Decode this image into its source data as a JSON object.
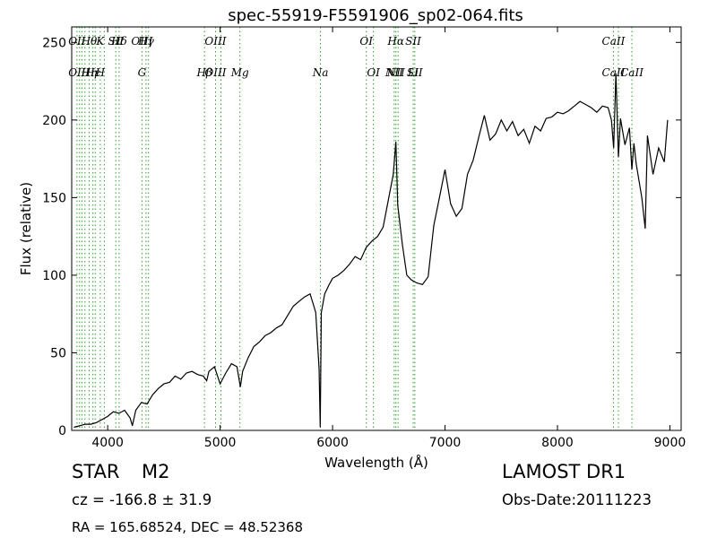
{
  "chart_data": {
    "type": "line",
    "title": "spec-55919-F5591906_sp02-064.fits",
    "xlabel": "Wavelength (Å)",
    "ylabel": "Flux (relative)",
    "xlim": [
      3680,
      9100
    ],
    "ylim": [
      0,
      260
    ],
    "xticks": [
      4000,
      5000,
      6000,
      7000,
      8000,
      9000
    ],
    "yticks": [
      0,
      50,
      100,
      150,
      200,
      250
    ],
    "grid": false,
    "line_color": "#000000",
    "line_marker_color": "#2ca02c",
    "series": [
      {
        "x": [
          3700,
          3750,
          3800,
          3850,
          3900,
          3950,
          4000,
          4050,
          4100,
          4150,
          4200,
          4220,
          4250,
          4300,
          4350,
          4400,
          4450,
          4500,
          4550,
          4600,
          4650,
          4700,
          4750,
          4800,
          4850,
          4880,
          4900,
          4950,
          5000,
          5050,
          5100,
          5150,
          5180,
          5200,
          5250,
          5300,
          5350,
          5400,
          5450,
          5500,
          5550,
          5600,
          5650,
          5700,
          5750,
          5800,
          5850,
          5880,
          5890,
          5900,
          5930,
          5970,
          6000,
          6050,
          6100,
          6150,
          6200,
          6250,
          6300,
          6350,
          6400,
          6450,
          6500,
          6540,
          6563,
          6580,
          6620,
          6660,
          6700,
          6750,
          6800,
          6850,
          6900,
          6950,
          7000,
          7050,
          7100,
          7150,
          7200,
          7250,
          7300,
          7350,
          7400,
          7450,
          7500,
          7550,
          7600,
          7650,
          7700,
          7750,
          7800,
          7850,
          7900,
          7950,
          8000,
          8050,
          8100,
          8150,
          8200,
          8250,
          8300,
          8350,
          8400,
          8450,
          8480,
          8500,
          8520,
          8542,
          8560,
          8600,
          8640,
          8662,
          8680,
          8700,
          8750,
          8780,
          8800,
          8850,
          8900,
          8950,
          8980
        ],
        "y": [
          2,
          3,
          4,
          4,
          5,
          7,
          9,
          12,
          11,
          13,
          8,
          3,
          13,
          18,
          17,
          23,
          27,
          30,
          31,
          35,
          33,
          37,
          38,
          36,
          35,
          32,
          38,
          41,
          30,
          37,
          43,
          41,
          28,
          38,
          47,
          54,
          57,
          61,
          63,
          66,
          68,
          74,
          80,
          83,
          86,
          88,
          76,
          40,
          2,
          76,
          88,
          94,
          98,
          100,
          103,
          107,
          112,
          110,
          118,
          122,
          125,
          131,
          150,
          165,
          186,
          145,
          120,
          100,
          97,
          95,
          94,
          99,
          132,
          150,
          168,
          146,
          138,
          143,
          165,
          174,
          189,
          203,
          187,
          191,
          200,
          193,
          199,
          190,
          194,
          185,
          196,
          193,
          201,
          202,
          205,
          204,
          206,
          209,
          212,
          210,
          208,
          205,
          209,
          208,
          200,
          182,
          230,
          176,
          201,
          184,
          195,
          168,
          185,
          172,
          150,
          130,
          190,
          165,
          182,
          173,
          200
        ]
      }
    ],
    "lines": [
      {
        "x": 3727,
        "top": "OII",
        "bottom": "OII"
      },
      {
        "x": 3750,
        "top": "",
        "bottom": ""
      },
      {
        "x": 3771,
        "top": "",
        "bottom": ""
      },
      {
        "x": 3798,
        "top": "",
        "bottom": ""
      },
      {
        "x": 3835,
        "top": "Hθ",
        "bottom": "Hη"
      },
      {
        "x": 3869,
        "top": "",
        "bottom": "Hε"
      },
      {
        "x": 3889,
        "top": "",
        "bottom": ""
      },
      {
        "x": 3934,
        "top": "K",
        "bottom": "H"
      },
      {
        "x": 3970,
        "top": "",
        "bottom": ""
      },
      {
        "x": 4072,
        "top": "SII",
        "bottom": ""
      },
      {
        "x": 4102,
        "top": "Hδ",
        "bottom": ""
      },
      {
        "x": 4305,
        "top": "OIII",
        "bottom": "G"
      },
      {
        "x": 4341,
        "top": "Hγ",
        "bottom": ""
      },
      {
        "x": 4363,
        "top": "",
        "bottom": ""
      },
      {
        "x": 4861,
        "top": "",
        "bottom": "Hβ"
      },
      {
        "x": 4959,
        "top": "OIII",
        "bottom": "OIII"
      },
      {
        "x": 5007,
        "top": "",
        "bottom": ""
      },
      {
        "x": 5176,
        "top": "",
        "bottom": "Mg"
      },
      {
        "x": 5892,
        "top": "",
        "bottom": "Na"
      },
      {
        "x": 6300,
        "top": "OI",
        "bottom": ""
      },
      {
        "x": 6363,
        "top": "",
        "bottom": "OI"
      },
      {
        "x": 6548,
        "top": "",
        "bottom": "NII"
      },
      {
        "x": 6563,
        "top": "Hα",
        "bottom": "NII"
      },
      {
        "x": 6583,
        "top": "",
        "bottom": ""
      },
      {
        "x": 6717,
        "top": "SII",
        "bottom": "Li"
      },
      {
        "x": 6731,
        "top": "",
        "bottom": "SII"
      },
      {
        "x": 8498,
        "top": "CaII",
        "bottom": "CaII"
      },
      {
        "x": 8542,
        "top": "",
        "bottom": ""
      },
      {
        "x": 8662,
        "top": "",
        "bottom": "CaII"
      }
    ]
  },
  "info": {
    "class_label": "STAR",
    "subclass_label": "M2",
    "survey": "LAMOST DR1",
    "redshift": "cz = -166.8 ± 31.9",
    "obs_date": "Obs-Date:20111223",
    "coords": "RA = 165.68524, DEC = 48.52368"
  }
}
